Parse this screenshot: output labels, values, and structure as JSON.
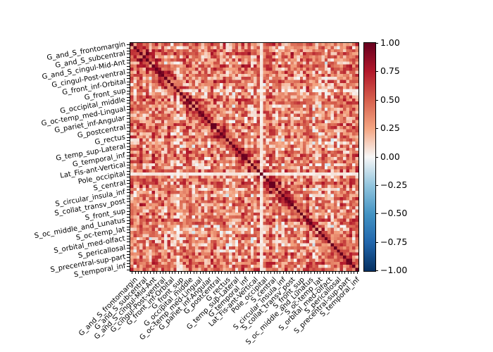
{
  "chart_data": {
    "type": "heatmap",
    "title": "",
    "xlabel": "",
    "ylabel": "",
    "n_regions": 74,
    "matrix_kind": "correlation matrix (symmetric, diagonal = 1.0)",
    "colormap": "RdBu_r",
    "vmin": -1.0,
    "vmax": 1.0,
    "tick_labels_shown": [
      "G_and_S_frontomargin",
      "G_and_S_subcentral",
      "G_and_S_cingul-Mid-Ant",
      "G_cingul-Post-ventral",
      "G_front_inf-Orbital",
      "G_front_sup",
      "G_occipital_middle",
      "G_oc-temp_med-Lingual",
      "G_pariet_inf-Angular",
      "G_postcentral",
      "G_rectus",
      "G_temp_sup-Lateral",
      "G_temporal_inf",
      "Lat_Fis-ant-Vertical",
      "Pole_occipital",
      "S_central",
      "S_circular_insula_inf",
      "S_collat_transv_post",
      "S_front_sup",
      "S_oc_middle_and_Lunatus",
      "S_oc-temp_lat",
      "S_orbital_med-olfact",
      "S_pericallosal",
      "S_precentral-sup-part",
      "S_temporal_inf"
    ],
    "tick_label_interval": 3,
    "notes": "Values are mostly positive (0.1–0.8); diagonal = 1.00; a few negative (~-0.3 to -0.6) cells; one near-zero row/column around index 42 (Lat_Fis region) and index 15.",
    "colorbar": {
      "ticks": [
        1.0,
        0.75,
        0.5,
        0.25,
        0.0,
        -0.25,
        -0.5,
        -0.75,
        -1.0
      ],
      "tick_labels": [
        "1.00",
        "0.75",
        "0.50",
        "0.25",
        "0.00",
        "−0.25",
        "−0.50",
        "−0.75",
        "−1.00"
      ]
    },
    "grid": false,
    "legend": "colorbar right"
  }
}
